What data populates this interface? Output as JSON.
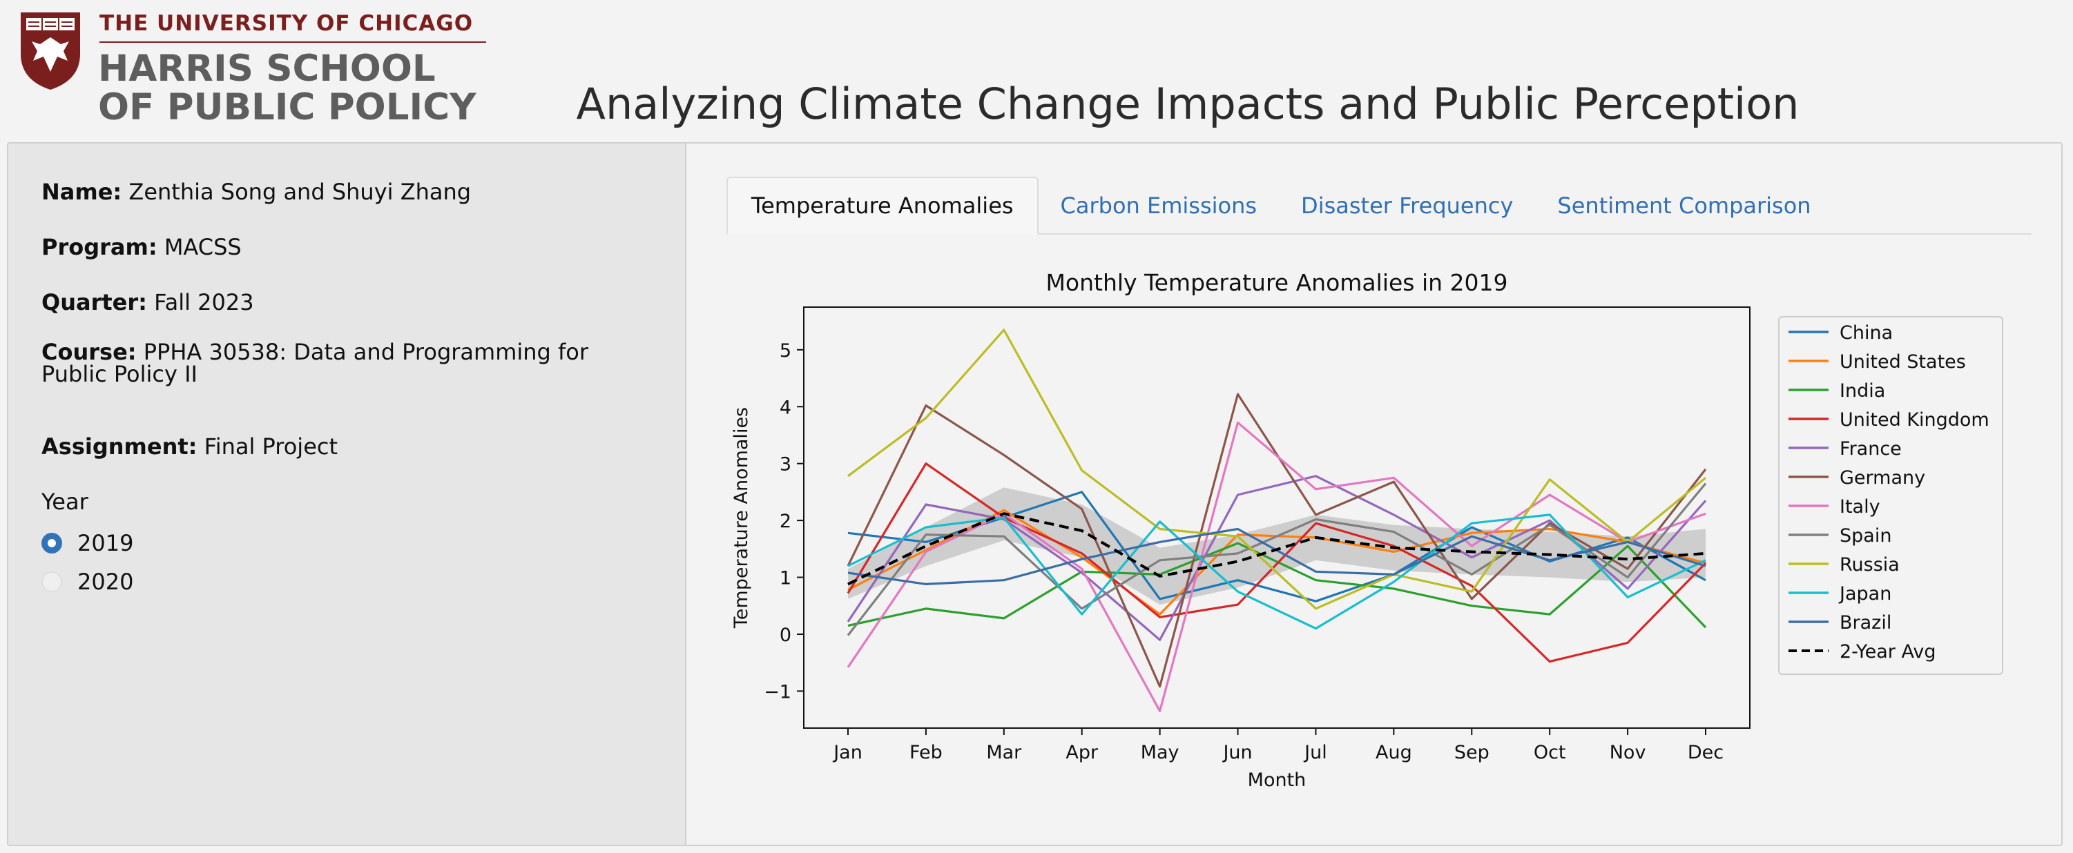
{
  "logo": {
    "university": "THE UNIVERSITY OF CHICAGO",
    "school_line1": "HARRIS SCHOOL",
    "school_line2": "OF PUBLIC POLICY",
    "crest_colors": {
      "shield": "#7b1e1e"
    }
  },
  "header": {
    "title": "Analyzing Climate Change Impacts and Public Perception"
  },
  "sidebar": {
    "name_label": "Name:",
    "name_value": "Zenthia Song and Shuyi Zhang",
    "program_label": "Program:",
    "program_value": "MACSS",
    "quarter_label": "Quarter:",
    "quarter_value": "Fall 2023",
    "course_label": "Course:",
    "course_value": "PPHA 30538: Data and Programming for Public Policy II",
    "assignment_label": "Assignment:",
    "assignment_value": "Final Project",
    "year_label": "Year",
    "year_options": [
      {
        "label": "2019",
        "selected": true
      },
      {
        "label": "2020",
        "selected": false
      }
    ]
  },
  "tabs": [
    {
      "label": "Temperature Anomalies",
      "active": true
    },
    {
      "label": "Carbon Emissions",
      "active": false
    },
    {
      "label": "Disaster Frequency",
      "active": false
    },
    {
      "label": "Sentiment Comparison",
      "active": false
    }
  ],
  "accent_color": "#3273b8",
  "chart_data": {
    "type": "line",
    "title": "Monthly Temperature Anomalies in 2019",
    "xlabel": "Month",
    "ylabel": "Temperature Anomalies",
    "categories": [
      "Jan",
      "Feb",
      "Mar",
      "Apr",
      "May",
      "Jun",
      "Jul",
      "Aug",
      "Sep",
      "Oct",
      "Nov",
      "Dec"
    ],
    "ylim": [
      -1.65,
      5.75
    ],
    "yticks": [
      -1,
      0,
      1,
      2,
      3,
      4,
      5
    ],
    "ytick_labels": [
      "−1",
      "0",
      "1",
      "2",
      "3",
      "4",
      "5"
    ],
    "grid": false,
    "legend_position": "right",
    "series": [
      {
        "name": "China",
        "color": "#1f77b4",
        "values": [
          1.78,
          1.62,
          2.05,
          2.5,
          0.62,
          0.95,
          0.58,
          1.05,
          1.88,
          1.28,
          1.7,
          0.95
        ]
      },
      {
        "name": "United States",
        "color": "#ff7f0e",
        "values": [
          0.78,
          1.48,
          2.18,
          1.35,
          0.35,
          1.75,
          1.7,
          1.45,
          1.78,
          1.85,
          1.62,
          1.25
        ]
      },
      {
        "name": "India",
        "color": "#2ca02c",
        "values": [
          0.15,
          0.45,
          0.28,
          1.1,
          1.05,
          1.6,
          0.95,
          0.8,
          0.5,
          0.35,
          1.55,
          0.12
        ]
      },
      {
        "name": "United Kingdom",
        "color": "#d62728",
        "values": [
          0.72,
          3.0,
          2.05,
          1.42,
          0.3,
          0.52,
          1.95,
          1.55,
          0.85,
          -0.48,
          -0.15,
          1.25
        ]
      },
      {
        "name": "France",
        "color": "#9467bd",
        "values": [
          0.22,
          2.28,
          2.02,
          1.08,
          -0.1,
          2.45,
          2.78,
          2.1,
          1.35,
          2.0,
          0.8,
          2.35
        ]
      },
      {
        "name": "Germany",
        "color": "#8c564b",
        "values": [
          1.2,
          4.02,
          3.15,
          2.2,
          -0.92,
          4.22,
          2.1,
          2.68,
          0.62,
          1.95,
          1.15,
          2.9
        ]
      },
      {
        "name": "Italy",
        "color": "#e377c2",
        "values": [
          -0.58,
          1.45,
          2.12,
          1.15,
          -1.35,
          3.72,
          2.55,
          2.75,
          1.55,
          2.45,
          1.62,
          2.12
        ]
      },
      {
        "name": "Spain",
        "color": "#7f7f7f",
        "values": [
          -0.02,
          1.75,
          1.72,
          0.45,
          1.3,
          1.42,
          2.02,
          1.8,
          1.05,
          1.92,
          1.0,
          2.65
        ]
      },
      {
        "name": "Russia",
        "color": "#bcbd22",
        "values": [
          2.78,
          3.8,
          5.35,
          2.88,
          1.85,
          1.72,
          0.45,
          1.05,
          0.75,
          2.72,
          1.62,
          2.75
        ]
      },
      {
        "name": "Japan",
        "color": "#17becf",
        "values": [
          1.2,
          1.88,
          2.05,
          0.35,
          1.98,
          0.75,
          0.1,
          0.92,
          1.95,
          2.1,
          0.65,
          1.3
        ]
      },
      {
        "name": "Brazil",
        "color": "#3a6ea5",
        "values": [
          1.08,
          0.88,
          0.95,
          1.32,
          1.62,
          1.85,
          1.1,
          1.05,
          1.72,
          1.3,
          1.62,
          1.2
        ]
      },
      {
        "name": "2-Year Avg",
        "color": "#000000",
        "dashed": true,
        "values": [
          0.88,
          1.55,
          2.12,
          1.82,
          1.02,
          1.28,
          1.7,
          1.52,
          1.45,
          1.4,
          1.32,
          1.42
        ]
      }
    ],
    "band": {
      "color": "#a9a9a9",
      "lower": [
        0.62,
        1.2,
        1.65,
        1.35,
        0.52,
        0.82,
        1.3,
        1.12,
        1.05,
        1.0,
        0.92,
        1.0
      ],
      "upper": [
        1.15,
        1.88,
        2.58,
        2.28,
        1.52,
        1.75,
        2.1,
        1.92,
        1.85,
        1.8,
        1.72,
        1.85
      ]
    }
  }
}
